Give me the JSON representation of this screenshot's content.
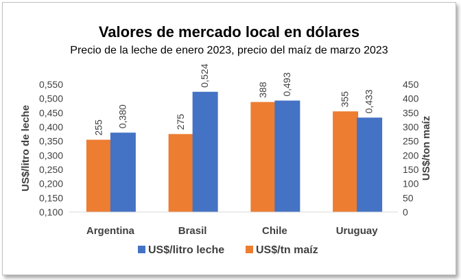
{
  "chart_data": {
    "type": "bar",
    "title": "Valores de mercado local en dólares",
    "subtitle": "Precio de la leche de enero 2023, precio del maíz de marzo 2023",
    "categories": [
      "Argentina",
      "Brasil",
      "Chile",
      "Uruguay"
    ],
    "ylabel_left": "US$/litro de leche",
    "ylabel_right": "US$/ton maíz",
    "ylim_left": [
      0.1,
      0.55
    ],
    "ylim_right": [
      0,
      450
    ],
    "yticks_left": [
      "0,100",
      "0,150",
      "0,200",
      "0,250",
      "0,300",
      "0,350",
      "0,400",
      "0,450",
      "0,500",
      "0,550"
    ],
    "yticks_right": [
      "0",
      "50",
      "100",
      "150",
      "200",
      "250",
      "300",
      "350",
      "400",
      "450"
    ],
    "series": [
      {
        "name": "US$/litro leche",
        "axis": "left",
        "color": "#4472C4",
        "values": [
          0.38,
          0.524,
          0.493,
          0.433
        ],
        "labels": [
          "0,380",
          "0,524",
          "0,493",
          "0,433"
        ]
      },
      {
        "name": "US$/tn maíz",
        "axis": "right",
        "color": "#ED7D31",
        "values": [
          255,
          275,
          388,
          355
        ],
        "labels": [
          "255",
          "275",
          "388",
          "355"
        ]
      }
    ],
    "legend_position": "bottom",
    "grid": false
  }
}
